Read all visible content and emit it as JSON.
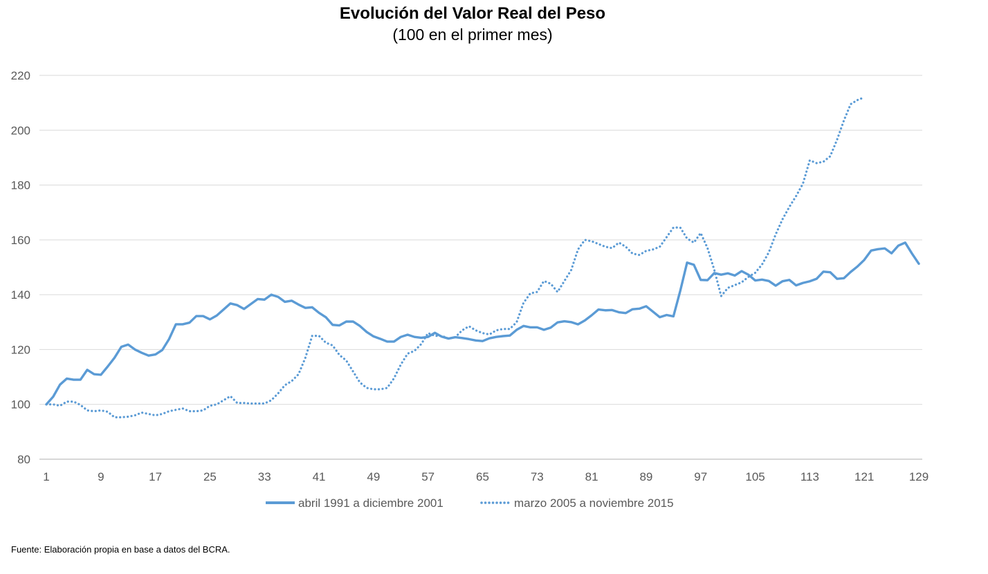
{
  "chart_data": {
    "type": "line",
    "title": "Evolución del Valor Real del Peso",
    "subtitle": "(100 en el primer mes)",
    "xlabel": "",
    "ylabel": "",
    "ylim": [
      80,
      220
    ],
    "xlim": [
      1,
      129
    ],
    "y_ticks": [
      80,
      100,
      120,
      140,
      160,
      180,
      200,
      220
    ],
    "x_ticks": [
      1,
      9,
      17,
      25,
      33,
      41,
      49,
      57,
      65,
      73,
      81,
      89,
      97,
      105,
      113,
      121,
      129
    ],
    "grid": true,
    "legend_position": "bottom",
    "series": [
      {
        "name": "abril 1991 a diciembre 2001",
        "style": "solid",
        "color": "#5b9bd5",
        "values": [
          100,
          102.8,
          107.2,
          109.4,
          109.0,
          109.0,
          112.6,
          111.0,
          110.8,
          113.8,
          117.0,
          121.0,
          121.8,
          120.0,
          118.8,
          117.8,
          118.2,
          119.8,
          123.8,
          129.2,
          129.2,
          129.8,
          132.2,
          132.2,
          131.0,
          132.4,
          134.6,
          136.8,
          136.2,
          134.8,
          136.6,
          138.4,
          138.2,
          140.0,
          139.2,
          137.4,
          137.8,
          136.4,
          135.2,
          135.4,
          133.4,
          131.8,
          129.0,
          128.8,
          130.2,
          130.2,
          128.6,
          126.4,
          124.8,
          123.9,
          122.9,
          122.9,
          124.6,
          125.4,
          124.6,
          124.3,
          124.6,
          126.1,
          124.7,
          124.0,
          124.5,
          124.2,
          123.8,
          123.3,
          123.1,
          124.1,
          124.6,
          124.9,
          125.1,
          127.2,
          128.6,
          128.1,
          128.1,
          127.2,
          128.0,
          129.9,
          130.3,
          130.0,
          129.2,
          130.6,
          132.5,
          134.6,
          134.3,
          134.4,
          133.6,
          133.3,
          134.7,
          134.9,
          135.8,
          133.8,
          131.8,
          132.6,
          132.1,
          141.4,
          151.7,
          150.9,
          145.4,
          145.3,
          147.9,
          147.3,
          147.8,
          147.0,
          148.6,
          147.3,
          145.2,
          145.5,
          145.0,
          143.3,
          144.9,
          145.4,
          143.4,
          144.3,
          144.9,
          145.8,
          148.4,
          148.2,
          145.8,
          146.0,
          148.3,
          150.3,
          152.7,
          156.1,
          156.6,
          156.9,
          155.1,
          157.9,
          159.0,
          155.0,
          151.3
        ]
      },
      {
        "name": "marzo 2005 a noviembre 2015",
        "style": "dotted",
        "color": "#5b9bd5",
        "values": [
          100,
          100.0,
          99.5,
          101.0,
          101.0,
          99.8,
          97.8,
          97.5,
          97.8,
          97.3,
          95.3,
          95.3,
          95.5,
          96.0,
          97.0,
          96.5,
          96.0,
          96.5,
          97.5,
          98.0,
          98.5,
          97.5,
          97.5,
          97.8,
          99.5,
          100.0,
          101.5,
          103.0,
          100.5,
          100.5,
          100.3,
          100.3,
          100.3,
          101.5,
          104.0,
          107.0,
          108.5,
          111.0,
          117.0,
          125.0,
          125.0,
          122.5,
          121.5,
          118.0,
          116.0,
          112.0,
          108.0,
          106.0,
          105.5,
          105.5,
          106.0,
          109.5,
          114.5,
          118.5,
          119.5,
          122.0,
          126.0,
          125.0,
          125.0,
          124.0,
          124.5,
          127.0,
          128.5,
          127.0,
          126.0,
          125.5,
          127.0,
          127.5,
          127.5,
          130.0,
          137.0,
          140.5,
          141.0,
          145.0,
          144.0,
          141.0,
          145.0,
          149.0,
          156.5,
          160.0,
          159.5,
          158.5,
          157.5,
          157.0,
          159.0,
          157.5,
          155.0,
          154.5,
          156.0,
          156.5,
          157.5,
          161.0,
          164.5,
          164.5,
          160.5,
          159.0,
          162.5,
          157.0,
          149.0,
          139.5,
          142.5,
          143.5,
          144.5,
          146.5,
          148.0,
          151.0,
          155.5,
          162.0,
          167.5,
          172.0,
          176.0,
          180.5,
          189.0,
          188.0,
          188.5,
          190.5,
          196.5,
          203.5,
          209.5,
          211.0,
          212.0
        ]
      }
    ]
  },
  "source_note": "Fuente: Elaboración propia en base a datos del BCRA."
}
